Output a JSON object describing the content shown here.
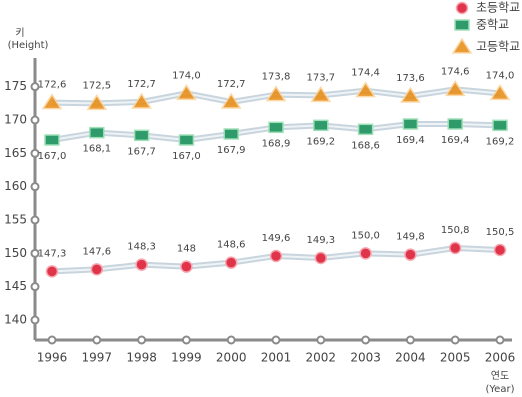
{
  "chart_data": {
    "type": "line",
    "y_label": {
      "text": "키",
      "note": "(Height)"
    },
    "x_label": {
      "text": "연도",
      "note": "(Year)"
    },
    "categories": [
      "1996",
      "1997",
      "1998",
      "1999",
      "2000",
      "2001",
      "2002",
      "2003",
      "2004",
      "2005",
      "2006"
    ],
    "series": [
      {
        "name": "초등학교",
        "color": "#e0344a",
        "marker": "circle",
        "label_side": "above",
        "values": [
          147.3,
          147.6,
          148.3,
          148,
          148.6,
          149.6,
          149.3,
          150.0,
          149.8,
          150.8,
          150.5
        ],
        "value_labels": [
          "147,3",
          "147,6",
          "148,3",
          "148",
          "148,6",
          "149,6",
          "149,3",
          "150,0",
          "149,8",
          "150,8",
          "150,5"
        ]
      },
      {
        "name": "중학교",
        "color": "#2f9a6a",
        "marker": "square",
        "label_side": "below",
        "values": [
          167.0,
          168.1,
          167.7,
          167.0,
          167.9,
          168.9,
          169.2,
          168.6,
          169.4,
          169.4,
          169.2
        ],
        "value_labels": [
          "167,0",
          "168,1",
          "167,7",
          "167,0",
          "167,9",
          "168,9",
          "169,2",
          "168,6",
          "169,4",
          "169,4",
          "169,2"
        ]
      },
      {
        "name": "고등학교",
        "color": "#e88a10",
        "marker": "triangle",
        "label_side": "above",
        "values": [
          172.6,
          172.5,
          172.7,
          174.0,
          172.7,
          173.8,
          173.7,
          174.4,
          173.6,
          174.6,
          174.0
        ],
        "value_labels": [
          "172,6",
          "172,5",
          "172,7",
          "174,0",
          "172,7",
          "173,8",
          "173,7",
          "174,4",
          "173,6",
          "174,6",
          "174,0"
        ]
      }
    ],
    "ylim": [
      137,
      179
    ],
    "yticks": [
      140,
      145,
      150,
      155,
      160,
      165,
      170,
      175
    ],
    "legend": "top-right",
    "line_color": "#c9d5de"
  }
}
